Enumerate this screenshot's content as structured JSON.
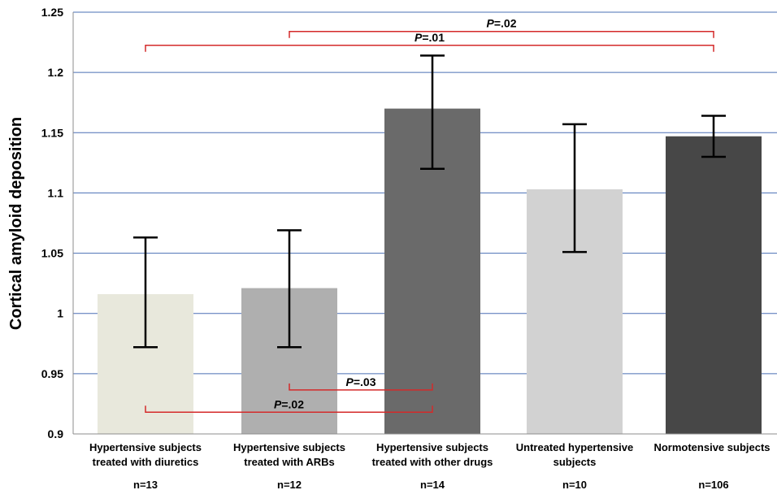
{
  "chart_data": {
    "type": "bar",
    "title": "",
    "xlabel": "",
    "ylabel": "Cortical amyloid deposition",
    "ylim": [
      0.9,
      1.25
    ],
    "yticks": [
      "0.9",
      "0.95",
      "1",
      "1.05",
      "1.1",
      "1.15",
      "1.2",
      "1.25"
    ],
    "grid": true,
    "categories": [
      [
        "Hypertensive subjects",
        "treated with diuretics"
      ],
      [
        "Hypertensive subjects",
        "treated with ARBs"
      ],
      [
        "Hypertensive subjects",
        "treated with other drugs"
      ],
      [
        "Untreated hypertensive",
        "subjects"
      ],
      [
        "Normotensive subjects"
      ]
    ],
    "sample_sizes": [
      "n=13",
      "n=12",
      "n=14",
      "n=10",
      "n=106"
    ],
    "values": [
      1.016,
      1.021,
      1.17,
      1.103,
      1.147
    ],
    "error_upper": [
      1.063,
      1.069,
      1.214,
      1.157,
      1.164
    ],
    "error_lower": [
      0.972,
      0.972,
      1.12,
      1.051,
      1.13
    ],
    "bar_colors": [
      "#e8e8dc",
      "#afafaf",
      "#6a6a6a",
      "#d2d2d2",
      "#474747"
    ],
    "gridline_color": "#4a6fb5",
    "bracket_color": "#d42a2a",
    "comparisons": [
      {
        "from": 1,
        "to": 4,
        "label": "P=.02",
        "level": 1.234
      },
      {
        "from": 0,
        "to": 4,
        "label": "P=.01",
        "level": 1.2225
      },
      {
        "from": 1,
        "to": 2,
        "label": "P=.03",
        "level": 0.9365
      },
      {
        "from": 0,
        "to": 2,
        "label": "P=.02",
        "level": 0.918
      }
    ]
  }
}
